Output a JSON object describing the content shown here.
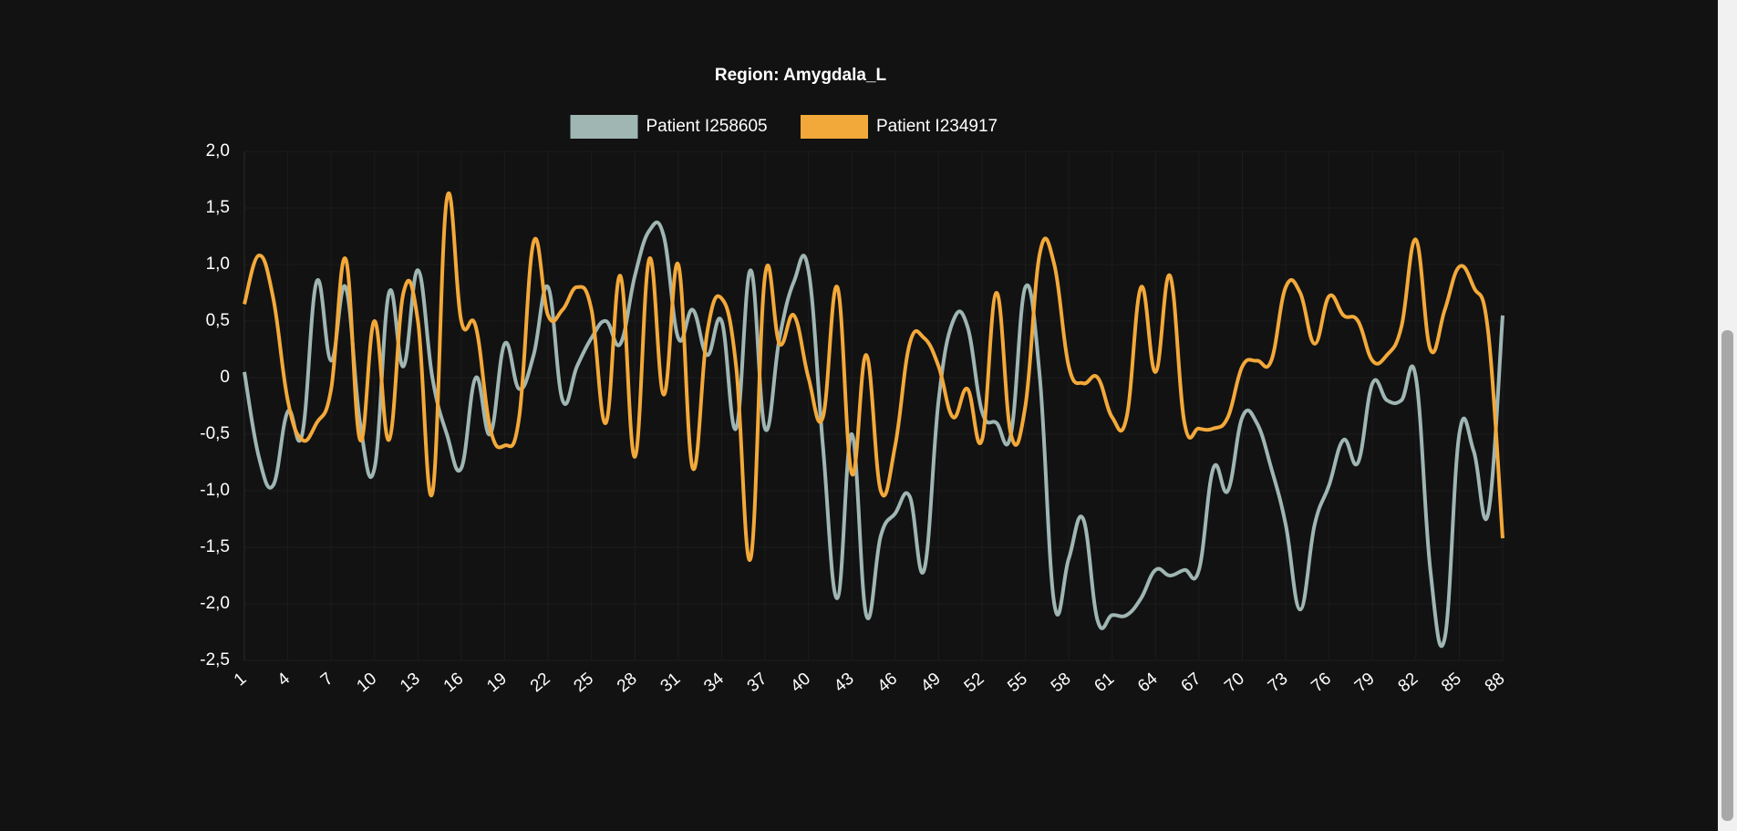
{
  "chart_data": {
    "type": "line",
    "title": "Region: Amygdala_L",
    "categories": [
      1,
      null,
      null,
      4,
      null,
      null,
      7,
      null,
      null,
      10,
      null,
      null,
      13,
      null,
      null,
      16,
      null,
      null,
      19,
      null,
      null,
      22,
      null,
      null,
      25,
      null,
      null,
      28,
      null,
      null,
      31,
      null,
      null,
      34,
      null,
      null,
      37,
      null,
      null,
      40,
      null,
      null,
      43,
      null,
      null,
      46,
      null,
      null,
      49,
      null,
      null,
      52,
      null,
      null,
      55,
      null,
      null,
      58,
      null,
      null,
      61,
      null,
      null,
      64,
      null,
      null,
      67,
      null,
      null,
      70,
      null,
      null,
      73,
      null,
      null,
      76,
      null,
      null,
      79,
      null,
      null,
      82,
      null,
      null,
      85,
      null,
      null,
      88
    ],
    "series": [
      {
        "name": "Patient I258605",
        "color": "#9fb6b3",
        "values": [
          0.05,
          -0.7,
          -0.95,
          -0.3,
          -0.5,
          0.85,
          0.15,
          0.8,
          -0.4,
          -0.8,
          0.75,
          0.1,
          0.95,
          0.0,
          -0.5,
          -0.8,
          0.0,
          -0.5,
          0.3,
          -0.1,
          0.2,
          0.8,
          -0.2,
          0.1,
          0.35,
          0.5,
          0.3,
          0.9,
          1.3,
          1.25,
          0.35,
          0.6,
          0.2,
          0.5,
          -0.45,
          0.95,
          -0.45,
          0.35,
          0.85,
          0.95,
          -0.6,
          -1.95,
          -0.5,
          -2.1,
          -1.4,
          -1.2,
          -1.05,
          -1.7,
          -0.2,
          0.5,
          0.45,
          -0.3,
          -0.4,
          -0.5,
          0.8,
          0.0,
          -2.0,
          -1.6,
          -1.25,
          -2.15,
          -2.1,
          -2.1,
          -1.95,
          -1.7,
          -1.75,
          -1.7,
          -1.7,
          -0.8,
          -1.0,
          -0.35,
          -0.4,
          -0.8,
          -1.3,
          -2.05,
          -1.3,
          -0.95,
          -0.55,
          -0.75,
          -0.05,
          -0.2,
          -0.2,
          0.0,
          -1.7,
          -2.3,
          -0.5,
          -0.65,
          -1.2,
          0.55
        ]
      },
      {
        "name": "Patient I234917",
        "color": "#f3a93a",
        "values": [
          0.65,
          1.08,
          0.7,
          -0.2,
          -0.55,
          -0.4,
          -0.1,
          1.05,
          -0.55,
          0.5,
          -0.55,
          0.75,
          0.5,
          -1.02,
          1.58,
          0.5,
          0.45,
          -0.45,
          -0.6,
          -0.35,
          1.2,
          0.55,
          0.6,
          0.8,
          0.6,
          -0.4,
          0.9,
          -0.7,
          1.05,
          -0.15,
          1.0,
          -0.8,
          0.4,
          0.7,
          0.1,
          -1.6,
          0.9,
          0.3,
          0.55,
          0.0,
          -0.35,
          0.8,
          -0.85,
          0.2,
          -1.0,
          -0.6,
          0.3,
          0.35,
          0.1,
          -0.35,
          -0.1,
          -0.55,
          0.75,
          -0.5,
          -0.25,
          1.1,
          1.0,
          0.1,
          -0.05,
          0.0,
          -0.35,
          -0.35,
          0.8,
          0.05,
          0.9,
          -0.4,
          -0.45,
          -0.45,
          -0.35,
          0.1,
          0.15,
          0.15,
          0.8,
          0.75,
          0.3,
          0.72,
          0.55,
          0.5,
          0.15,
          0.2,
          0.45,
          1.22,
          0.25,
          0.6,
          0.98,
          0.8,
          0.4,
          -1.42
        ]
      }
    ],
    "ylim": [
      -2.5,
      2.0
    ],
    "yticks": [
      {
        "value": -2.5,
        "label": "-2,5"
      },
      {
        "value": -2.0,
        "label": "-2,0"
      },
      {
        "value": -1.5,
        "label": "-1,5"
      },
      {
        "value": -1.0,
        "label": "-1,0"
      },
      {
        "value": -0.5,
        "label": "-0,5"
      },
      0,
      {
        "value": 0.5,
        "label": "0,5"
      },
      {
        "value": 1.0,
        "label": "1,0"
      },
      {
        "value": 1.5,
        "label": "1,5"
      },
      {
        "value": 2.0,
        "label": "2,0"
      }
    ],
    "grid": true,
    "legend": "top"
  }
}
